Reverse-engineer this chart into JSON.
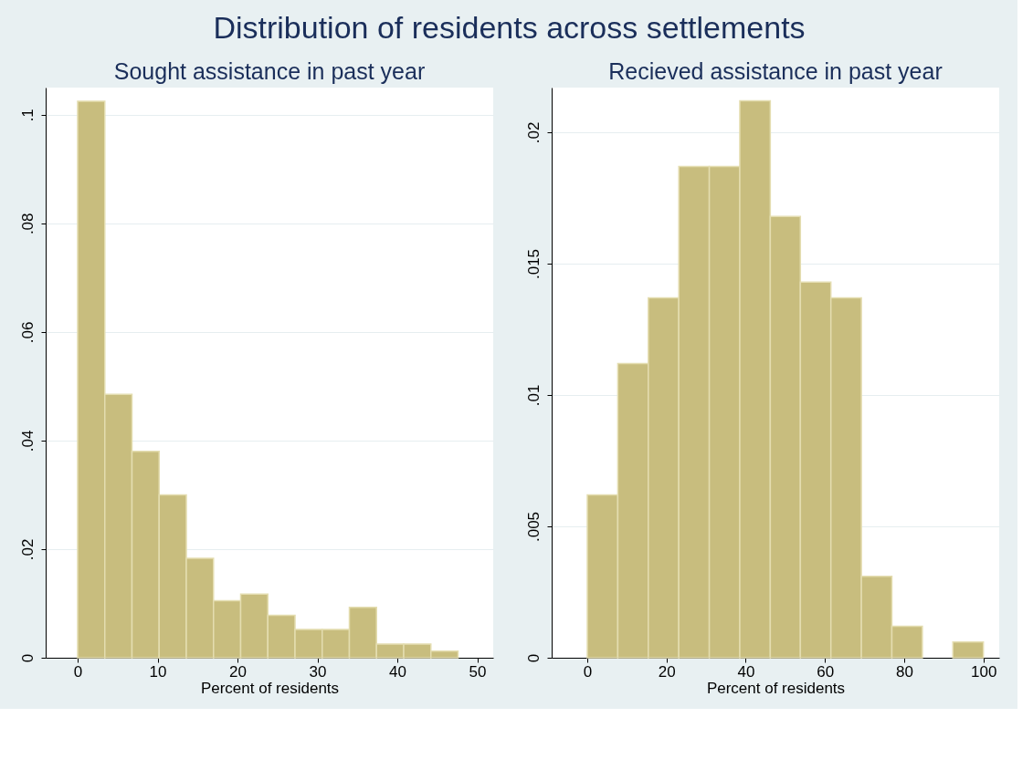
{
  "chart_data": [
    {
      "type": "histogram",
      "title": "Distribution of residents across settlements",
      "subtitle": "Sought assistance in past year",
      "xlabel": "Percent of residents",
      "bins": [
        0,
        3.4,
        6.8,
        10.2,
        13.6,
        17,
        20.4,
        23.8,
        27.2,
        30.6,
        34,
        37.4,
        40.8,
        44.2,
        47.6
      ],
      "values": [
        0.1025,
        0.0485,
        0.038,
        0.03,
        0.0183,
        0.0105,
        0.0117,
        0.0078,
        0.0052,
        0.0052,
        0.0093,
        0.0025,
        0.0025,
        0.0012
      ],
      "color": "#c8bd7e",
      "xlim": [
        -4,
        52
      ],
      "xticks": [
        0,
        10,
        20,
        30,
        40,
        50
      ],
      "ylim": [
        0,
        0.105
      ],
      "yticks": [
        {
          "value": 0,
          "label": "0"
        },
        {
          "value": 0.02,
          "label": ".02"
        },
        {
          "value": 0.04,
          "label": ".04"
        },
        {
          "value": 0.06,
          "label": ".06"
        },
        {
          "value": 0.08,
          "label": ".08"
        },
        {
          "value": 0.1,
          "label": ".1"
        }
      ],
      "grid": "y"
    },
    {
      "type": "histogram",
      "subtitle": "Recieved assistance in past year",
      "xlabel": "Percent of residents",
      "bins": [
        0,
        7.7,
        15.4,
        23.1,
        30.8,
        38.5,
        46.2,
        53.8,
        61.5,
        69.2,
        76.9,
        84.6,
        92.3,
        100
      ],
      "values": [
        0.0062,
        0.0112,
        0.0137,
        0.0187,
        0.0187,
        0.0212,
        0.0168,
        0.0143,
        0.0137,
        0.0031,
        0.0012,
        0,
        0.0006
      ],
      "color": "#c8bd7e",
      "xlim": [
        -9,
        104
      ],
      "xticks": [
        0,
        20,
        40,
        60,
        80,
        100
      ],
      "ylim": [
        0,
        0.0217
      ],
      "yticks": [
        {
          "value": 0,
          "label": "0"
        },
        {
          "value": 0.005,
          "label": ".005"
        },
        {
          "value": 0.01,
          "label": ".01"
        },
        {
          "value": 0.015,
          "label": ".015"
        },
        {
          "value": 0.02,
          "label": ".02"
        }
      ],
      "grid": "y"
    }
  ]
}
